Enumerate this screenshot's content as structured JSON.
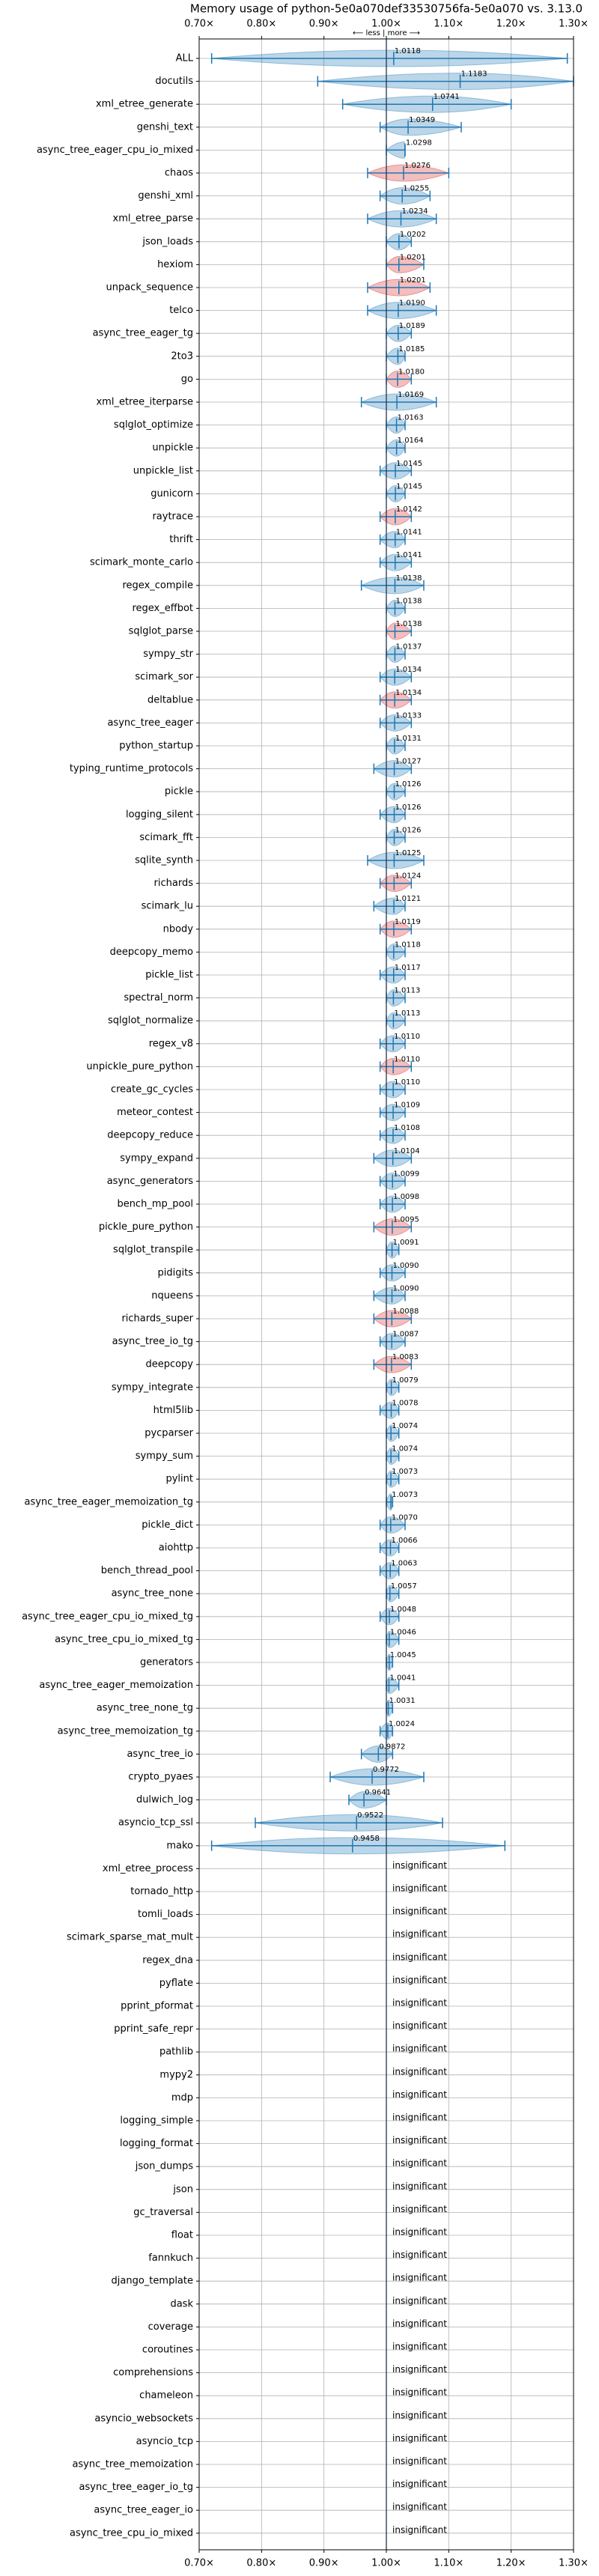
{
  "chart_data": {
    "type": "violin",
    "title": "Memory usage of python-5e0a070def33530756fa-5e0a070 vs. 3.13.0",
    "annotation": "⟵ less | more ⟶",
    "xlim": [
      0.7,
      1.3
    ],
    "xticks": [
      {
        "value": 0.7,
        "label": "0.70×"
      },
      {
        "value": 0.8,
        "label": "0.80×"
      },
      {
        "value": 0.9,
        "label": "0.90×"
      },
      {
        "value": 1.0,
        "label": "1.00×"
      },
      {
        "value": 1.1,
        "label": "1.10×"
      },
      {
        "value": 1.2,
        "label": "1.20×"
      },
      {
        "value": 1.3,
        "label": "1.30×"
      }
    ],
    "reference_line": 1,
    "grid": true,
    "whisker_color": "#1f77b4",
    "categories": [
      "ALL",
      "docutils",
      "xml_etree_generate",
      "genshi_text",
      "async_tree_eager_cpu_io_mixed",
      "chaos",
      "genshi_xml",
      "xml_etree_parse",
      "json_loads",
      "hexiom",
      "unpack_sequence",
      "telco",
      "async_tree_eager_tg",
      "2to3",
      "go",
      "xml_etree_iterparse",
      "sqlglot_optimize",
      "unpickle",
      "unpickle_list",
      "gunicorn",
      "raytrace",
      "thrift",
      "scimark_monte_carlo",
      "regex_compile",
      "regex_effbot",
      "sqlglot_parse",
      "sympy_str",
      "scimark_sor",
      "deltablue",
      "async_tree_eager",
      "python_startup",
      "typing_runtime_protocols",
      "pickle",
      "logging_silent",
      "scimark_fft",
      "sqlite_synth",
      "richards",
      "scimark_lu",
      "nbody",
      "deepcopy_memo",
      "pickle_list",
      "spectral_norm",
      "sqlglot_normalize",
      "regex_v8",
      "unpickle_pure_python",
      "create_gc_cycles",
      "meteor_contest",
      "deepcopy_reduce",
      "sympy_expand",
      "async_generators",
      "bench_mp_pool",
      "pickle_pure_python",
      "sqlglot_transpile",
      "pidigits",
      "nqueens",
      "richards_super",
      "async_tree_io_tg",
      "deepcopy",
      "sympy_integrate",
      "html5lib",
      "pycparser",
      "sympy_sum",
      "pylint",
      "async_tree_eager_memoization_tg",
      "pickle_dict",
      "aiohttp",
      "bench_thread_pool",
      "async_tree_none",
      "async_tree_eager_cpu_io_mixed_tg",
      "async_tree_cpu_io_mixed_tg",
      "generators",
      "async_tree_eager_memoization",
      "async_tree_none_tg",
      "async_tree_memoization_tg",
      "async_tree_io",
      "crypto_pyaes",
      "dulwich_log",
      "asyncio_tcp_ssl",
      "mako",
      "xml_etree_process",
      "tornado_http",
      "tomli_loads",
      "scimark_sparse_mat_mult",
      "regex_dna",
      "pyflate",
      "pprint_pformat",
      "pprint_safe_repr",
      "pathlib",
      "mypy2",
      "mdp",
      "logging_simple",
      "logging_format",
      "json_dumps",
      "json",
      "gc_traversal",
      "float",
      "fannkuch",
      "django_template",
      "dask",
      "coverage",
      "coroutines",
      "comprehensions",
      "chameleon",
      "asyncio_websockets",
      "asyncio_tcp",
      "async_tree_memoization",
      "async_tree_eager_io_tg",
      "async_tree_eager_io",
      "async_tree_cpu_io_mixed"
    ],
    "values": [
      1.0118,
      1.1183,
      1.0741,
      1.0349,
      1.0298,
      1.0276,
      1.0255,
      1.0234,
      1.0202,
      1.0201,
      1.0201,
      1.019,
      1.0189,
      1.0185,
      1.018,
      1.0169,
      1.0163,
      1.0164,
      1.0145,
      1.0145,
      1.0142,
      1.0141,
      1.0141,
      1.0138,
      1.0138,
      1.0138,
      1.0137,
      1.0134,
      1.0134,
      1.0133,
      1.0131,
      1.0127,
      1.0126,
      1.0126,
      1.0126,
      1.0125,
      1.0124,
      1.0121,
      1.0119,
      1.0118,
      1.0117,
      1.0113,
      1.0113,
      1.011,
      1.011,
      1.011,
      1.0109,
      1.0108,
      1.0104,
      1.0099,
      1.0098,
      1.0095,
      1.0091,
      1.009,
      1.009,
      1.0088,
      1.0087,
      1.0083,
      1.0079,
      1.0078,
      1.0074,
      1.0074,
      1.0073,
      1.0073,
      1.007,
      1.0066,
      1.0063,
      1.0057,
      1.0048,
      1.0046,
      1.0045,
      1.0041,
      1.0031,
      1.0024,
      0.9872,
      0.9772,
      0.9641,
      0.9522,
      0.9458,
      null,
      null,
      null,
      null,
      null,
      null,
      null,
      null,
      null,
      null,
      null,
      null,
      null,
      null,
      null,
      null,
      null,
      null,
      null,
      null,
      null,
      null,
      null,
      null,
      null,
      null,
      null,
      null,
      null,
      null
    ],
    "value_labels": [
      "1.0118",
      "1.1183",
      "1.0741",
      "1.0349",
      "1.0298",
      "1.0276",
      "1.0255",
      "1.0234",
      "1.0202",
      "1.0201",
      "1.0201",
      "1.0190",
      "1.0189",
      "1.0185",
      "1.0180",
      "1.0169",
      "1.0163",
      "1.0164",
      "1.0145",
      "1.0145",
      "1.0142",
      "1.0141",
      "1.0141",
      "1.0138",
      "1.0138",
      "1.0138",
      "1.0137",
      "1.0134",
      "1.0134",
      "1.0133",
      "1.0131",
      "1.0127",
      "1.0126",
      "1.0126",
      "1.0126",
      "1.0125",
      "1.0124",
      "1.0121",
      "1.0119",
      "1.0118",
      "1.0117",
      "1.0113",
      "1.0113",
      "1.0110",
      "1.0110",
      "1.0110",
      "1.0109",
      "1.0108",
      "1.0104",
      "1.0099",
      "1.0098",
      "1.0095",
      "1.0091",
      "1.0090",
      "1.0090",
      "1.0088",
      "1.0087",
      "1.0083",
      "1.0079",
      "1.0078",
      "1.0074",
      "1.0074",
      "1.0073",
      "1.0073",
      "1.0070",
      "1.0066",
      "1.0063",
      "1.0057",
      "1.0048",
      "1.0046",
      "1.0045",
      "1.0041",
      "1.0031",
      "1.0024",
      "0.9872",
      "0.9772",
      "0.9641",
      "0.9522",
      "0.9458",
      "insignificant",
      "insignificant",
      "insignificant",
      "insignificant",
      "insignificant",
      "insignificant",
      "insignificant",
      "insignificant",
      "insignificant",
      "insignificant",
      "insignificant",
      "insignificant",
      "insignificant",
      "insignificant",
      "insignificant",
      "insignificant",
      "insignificant",
      "insignificant",
      "insignificant",
      "insignificant",
      "insignificant",
      "insignificant",
      "insignificant",
      "insignificant",
      "insignificant",
      "insignificant",
      "insignificant",
      "insignificant",
      "insignificant",
      "insignificant"
    ],
    "whiskers": [
      [
        0.72,
        1.29
      ],
      [
        0.89,
        1.3
      ],
      [
        0.93,
        1.2
      ],
      [
        0.99,
        1.12
      ],
      [
        1.0,
        1.03
      ],
      [
        0.97,
        1.1
      ],
      [
        0.99,
        1.07
      ],
      [
        0.97,
        1.08
      ],
      [
        1.0,
        1.04
      ],
      [
        1.0,
        1.06
      ],
      [
        0.97,
        1.07
      ],
      [
        0.97,
        1.08
      ],
      [
        1.0,
        1.04
      ],
      [
        1.0,
        1.03
      ],
      [
        1.0,
        1.04
      ],
      [
        0.96,
        1.08
      ],
      [
        1.0,
        1.03
      ],
      [
        1.0,
        1.03
      ],
      [
        0.99,
        1.04
      ],
      [
        1.0,
        1.03
      ],
      [
        0.99,
        1.04
      ],
      [
        0.99,
        1.03
      ],
      [
        0.99,
        1.04
      ],
      [
        0.96,
        1.06
      ],
      [
        1.0,
        1.03
      ],
      [
        1.0,
        1.04
      ],
      [
        1.0,
        1.03
      ],
      [
        0.99,
        1.04
      ],
      [
        0.99,
        1.04
      ],
      [
        0.99,
        1.04
      ],
      [
        1.0,
        1.03
      ],
      [
        0.98,
        1.04
      ],
      [
        1.0,
        1.03
      ],
      [
        0.99,
        1.03
      ],
      [
        1.0,
        1.03
      ],
      [
        0.97,
        1.06
      ],
      [
        0.99,
        1.04
      ],
      [
        0.98,
        1.03
      ],
      [
        0.99,
        1.04
      ],
      [
        1.0,
        1.03
      ],
      [
        0.99,
        1.03
      ],
      [
        1.0,
        1.03
      ],
      [
        1.0,
        1.03
      ],
      [
        0.99,
        1.03
      ],
      [
        0.99,
        1.04
      ],
      [
        0.99,
        1.03
      ],
      [
        0.99,
        1.03
      ],
      [
        0.99,
        1.03
      ],
      [
        0.98,
        1.04
      ],
      [
        0.99,
        1.03
      ],
      [
        0.99,
        1.03
      ],
      [
        0.98,
        1.04
      ],
      [
        1.0,
        1.02
      ],
      [
        0.99,
        1.03
      ],
      [
        0.98,
        1.03
      ],
      [
        0.98,
        1.04
      ],
      [
        0.99,
        1.03
      ],
      [
        0.98,
        1.04
      ],
      [
        1.0,
        1.02
      ],
      [
        0.99,
        1.02
      ],
      [
        1.0,
        1.02
      ],
      [
        1.0,
        1.02
      ],
      [
        1.0,
        1.02
      ],
      [
        1.0,
        1.01
      ],
      [
        0.99,
        1.03
      ],
      [
        0.99,
        1.02
      ],
      [
        0.99,
        1.02
      ],
      [
        1.0,
        1.02
      ],
      [
        0.99,
        1.02
      ],
      [
        1.0,
        1.02
      ],
      [
        1.0,
        1.01
      ],
      [
        1.0,
        1.02
      ],
      [
        1.0,
        1.01
      ],
      [
        0.99,
        1.01
      ],
      [
        0.96,
        1.01
      ],
      [
        0.91,
        1.06
      ],
      [
        0.94,
        1.0
      ],
      [
        0.79,
        1.09
      ],
      [
        0.72,
        1.19
      ],
      null,
      null,
      null,
      null,
      null,
      null,
      null,
      null,
      null,
      null,
      null,
      null,
      null,
      null,
      null,
      null,
      null,
      null,
      null,
      null,
      null,
      null,
      null,
      null,
      null,
      null,
      null,
      null,
      null,
      null
    ],
    "colors": [
      "#1f77b4",
      "#1f77b4",
      "#1f77b4",
      "#1f77b4",
      "#1f77b4",
      "#d62728",
      "#1f77b4",
      "#1f77b4",
      "#1f77b4",
      "#d62728",
      "#d62728",
      "#1f77b4",
      "#1f77b4",
      "#1f77b4",
      "#d62728",
      "#1f77b4",
      "#1f77b4",
      "#1f77b4",
      "#1f77b4",
      "#1f77b4",
      "#d62728",
      "#1f77b4",
      "#1f77b4",
      "#1f77b4",
      "#1f77b4",
      "#d62728",
      "#1f77b4",
      "#1f77b4",
      "#d62728",
      "#1f77b4",
      "#1f77b4",
      "#1f77b4",
      "#1f77b4",
      "#1f77b4",
      "#1f77b4",
      "#1f77b4",
      "#d62728",
      "#1f77b4",
      "#d62728",
      "#1f77b4",
      "#1f77b4",
      "#1f77b4",
      "#1f77b4",
      "#1f77b4",
      "#d62728",
      "#1f77b4",
      "#1f77b4",
      "#1f77b4",
      "#1f77b4",
      "#1f77b4",
      "#1f77b4",
      "#d62728",
      "#1f77b4",
      "#1f77b4",
      "#1f77b4",
      "#d62728",
      "#1f77b4",
      "#d62728",
      "#1f77b4",
      "#1f77b4",
      "#1f77b4",
      "#1f77b4",
      "#1f77b4",
      "#1f77b4",
      "#1f77b4",
      "#1f77b4",
      "#1f77b4",
      "#1f77b4",
      "#1f77b4",
      "#1f77b4",
      "#1f77b4",
      "#1f77b4",
      "#1f77b4",
      "#1f77b4",
      "#1f77b4",
      "#1f77b4",
      "#1f77b4",
      "#1f77b4",
      "#1f77b4",
      null,
      null,
      null,
      null,
      null,
      null,
      null,
      null,
      null,
      null,
      null,
      null,
      null,
      null,
      null,
      null,
      null,
      null,
      null,
      null,
      null,
      null,
      null,
      null,
      null,
      null,
      null,
      null,
      null,
      null
    ]
  }
}
